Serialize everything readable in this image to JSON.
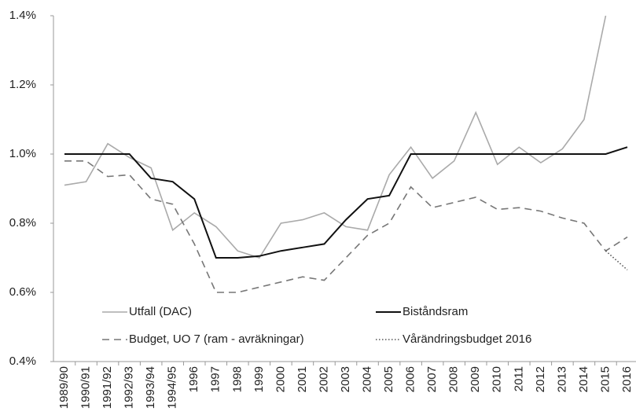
{
  "chart_data": {
    "type": "line",
    "categories": [
      "1989/90",
      "1990/91",
      "1991/92",
      "1992/93",
      "1993/94",
      "1994/95",
      "1996",
      "1997",
      "1998",
      "1999",
      "2000",
      "2001",
      "2002",
      "2003",
      "2004",
      "2005",
      "2006",
      "2007",
      "2008",
      "2009",
      "2010",
      "2011",
      "2012",
      "2013",
      "2014",
      "2015",
      "2016"
    ],
    "series": [
      {
        "name": "Utfall (DAC)",
        "color": "#aaaaaa",
        "dash": "solid",
        "values": [
          0.91,
          0.92,
          1.03,
          0.99,
          0.96,
          0.78,
          0.83,
          0.79,
          0.72,
          0.7,
          0.8,
          0.81,
          0.83,
          0.79,
          0.78,
          0.94,
          1.02,
          0.93,
          0.98,
          1.12,
          0.97,
          1.02,
          0.975,
          1.015,
          1.1,
          1.4,
          null
        ]
      },
      {
        "name": "Biståndsram",
        "color": "#111111",
        "dash": "solid",
        "values": [
          1.0,
          1.0,
          1.0,
          1.0,
          0.93,
          0.92,
          0.87,
          0.7,
          0.7,
          0.705,
          0.72,
          0.73,
          0.74,
          0.81,
          0.87,
          0.88,
          1.0,
          1.0,
          1.0,
          1.0,
          1.0,
          1.0,
          1.0,
          1.0,
          1.0,
          1.0,
          1.02
        ]
      },
      {
        "name": "Budget, UO 7 (ram - avräkningar)",
        "color": "#777777",
        "dash": "dashed",
        "values": [
          0.98,
          0.98,
          0.935,
          0.94,
          0.87,
          0.855,
          0.74,
          0.6,
          0.6,
          0.615,
          0.63,
          0.645,
          0.635,
          0.7,
          0.765,
          0.8,
          0.905,
          0.845,
          0.86,
          0.875,
          0.84,
          0.845,
          0.835,
          0.815,
          0.8,
          0.72,
          0.76
        ]
      },
      {
        "name": "Vårändringsbudget 2016",
        "color": "#555555",
        "dash": "dotted",
        "values": [
          null,
          null,
          null,
          null,
          null,
          null,
          null,
          null,
          null,
          null,
          null,
          null,
          null,
          null,
          null,
          null,
          null,
          null,
          null,
          null,
          null,
          null,
          null,
          null,
          null,
          0.72,
          0.665
        ]
      }
    ],
    "ylim": [
      0.4,
      1.4
    ],
    "yticks": [
      {
        "value": 0.4,
        "label": "0.4%"
      },
      {
        "value": 0.6,
        "label": "0.6%"
      },
      {
        "value": 0.8,
        "label": "0.8%"
      },
      {
        "value": 1.0,
        "label": "1.0%"
      },
      {
        "value": 1.2,
        "label": "1.2%"
      },
      {
        "value": 1.4,
        "label": "1.4%"
      }
    ],
    "grid": false
  }
}
